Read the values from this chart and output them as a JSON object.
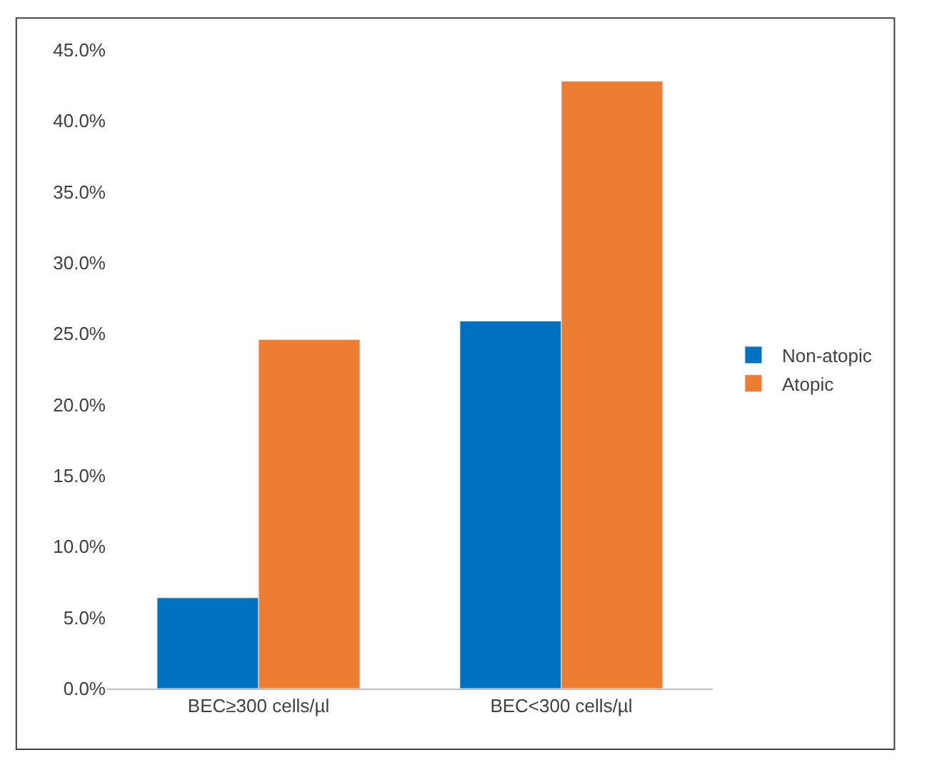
{
  "chart_data": {
    "type": "bar",
    "categories": [
      "BEC≥300 cells/µl",
      "BEC<300 cells/µl"
    ],
    "series": [
      {
        "name": "Non-atopic",
        "color": "#0070c0",
        "values": [
          6.4,
          25.9
        ]
      },
      {
        "name": "Atopic",
        "color": "#ed7d31",
        "values": [
          24.6,
          42.8
        ]
      }
    ],
    "ylim": [
      0,
      45
    ],
    "yticks": [
      {
        "value": 0,
        "label": "0.0%"
      },
      {
        "value": 5,
        "label": "5.0%"
      },
      {
        "value": 10,
        "label": "10.0%"
      },
      {
        "value": 15,
        "label": "15.0%"
      },
      {
        "value": 20,
        "label": "20.0%"
      },
      {
        "value": 25,
        "label": "25.0%"
      },
      {
        "value": 30,
        "label": "30.0%"
      },
      {
        "value": 35,
        "label": "35.0%"
      },
      {
        "value": 40,
        "label": "40.0%"
      },
      {
        "value": 45,
        "label": "45.0%"
      }
    ],
    "legend": "right"
  }
}
